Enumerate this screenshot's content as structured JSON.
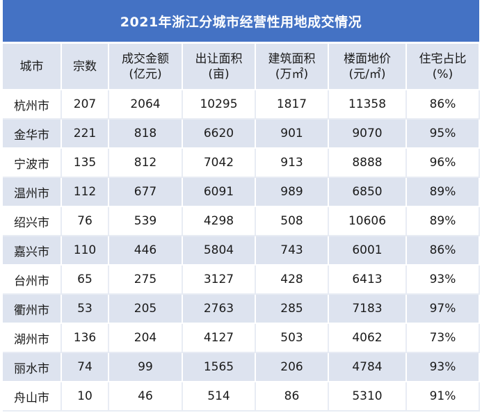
{
  "title": "2021年浙江分城市经营性用地成交情况",
  "headers": [
    {
      "l1": "城市",
      "l2": ""
    },
    {
      "l1": "宗数",
      "l2": ""
    },
    {
      "l1": "成交金额",
      "l2": "(亿元)"
    },
    {
      "l1": "出让面积",
      "l2": "(亩)"
    },
    {
      "l1": "建筑面积",
      "l2": "(万㎡)"
    },
    {
      "l1": "楼面地价",
      "l2": "(元/㎡)"
    },
    {
      "l1": "住宅占比",
      "l2": "(%)"
    }
  ],
  "rows": [
    [
      "杭州市",
      "207",
      "2064",
      "10295",
      "1817",
      "11358",
      "86%"
    ],
    [
      "金华市",
      "221",
      "818",
      "6620",
      "901",
      "9070",
      "95%"
    ],
    [
      "宁波市",
      "135",
      "812",
      "7042",
      "913",
      "8888",
      "96%"
    ],
    [
      "温州市",
      "112",
      "677",
      "6091",
      "989",
      "6850",
      "89%"
    ],
    [
      "绍兴市",
      "76",
      "539",
      "4298",
      "508",
      "10606",
      "89%"
    ],
    [
      "嘉兴市",
      "110",
      "446",
      "5804",
      "743",
      "6001",
      "86%"
    ],
    [
      "台州市",
      "65",
      "275",
      "3127",
      "428",
      "6413",
      "93%"
    ],
    [
      "衢州市",
      "53",
      "205",
      "2763",
      "285",
      "7183",
      "97%"
    ],
    [
      "湖州市",
      "136",
      "204",
      "4127",
      "503",
      "4062",
      "73%"
    ],
    [
      "丽水市",
      "74",
      "99",
      "1565",
      "206",
      "4784",
      "93%"
    ],
    [
      "舟山市",
      "10",
      "46",
      "514",
      "86",
      "5310",
      "91%"
    ]
  ],
  "colors": {
    "title_bg": "#4472c4",
    "header_bg": "#dde3ef",
    "row_alt_bg": "#dde3ef",
    "row_bg": "#ffffff"
  }
}
